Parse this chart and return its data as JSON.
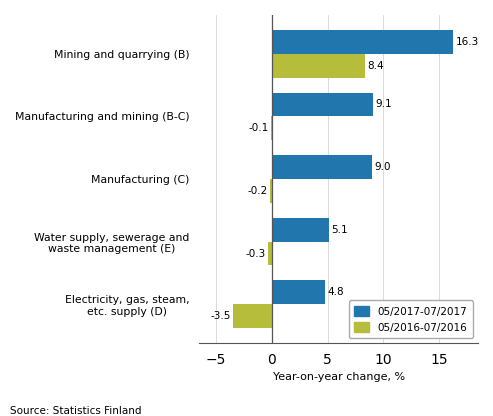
{
  "categories": [
    "Mining and quarrying (B)",
    "Manufacturing and mining (B-C)",
    "Manufacturing (C)",
    "Water supply, sewerage and\nwaste management (E)",
    "Electricity, gas, steam,\netc. supply (D)"
  ],
  "series_2017": [
    16.3,
    9.1,
    9.0,
    5.1,
    4.8
  ],
  "series_2016": [
    8.4,
    -0.1,
    -0.2,
    -0.3,
    -3.5
  ],
  "color_2017": "#2176ae",
  "color_2016": "#b5bd3a",
  "legend_2017": "05/2017-07/2017",
  "legend_2016": "05/2016-07/2016",
  "xlabel": "Year-on-year change, %",
  "xlim": [
    -6.5,
    18.5
  ],
  "xticks": [
    -5,
    0,
    5,
    10,
    15
  ],
  "source": "Source: Statistics Finland",
  "bar_height": 0.38,
  "background_color": "#ffffff"
}
